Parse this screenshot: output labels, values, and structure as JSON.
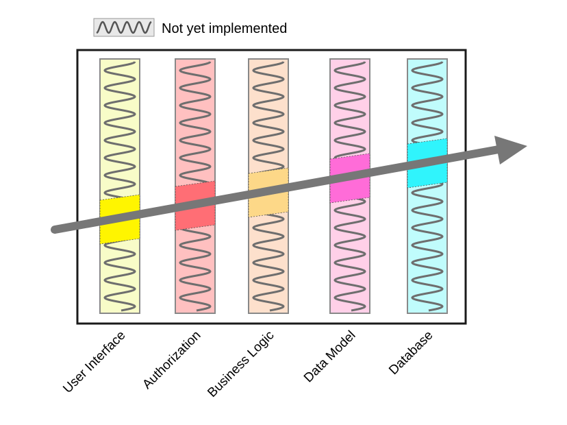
{
  "legend": {
    "label": "Not yet implemented",
    "icon": "squiggle-icon"
  },
  "layers": [
    {
      "label": "User Interface",
      "bg": "#f8fcc8",
      "slice": "#fff500"
    },
    {
      "label": "Authorization",
      "bg": "#ffc0c0",
      "slice": "#ff6e75"
    },
    {
      "label": "Business Logic",
      "bg": "#fde0cc",
      "slice": "#fdd888"
    },
    {
      "label": "Data Model",
      "bg": "#ffd0e8",
      "slice": "#ff6cd8"
    },
    {
      "label": "Database",
      "bg": "#c0fcfc",
      "slice": "#30f4fc"
    }
  ],
  "colors": {
    "arrow": "#777777",
    "squiggle": "#6e6e6e",
    "frame": "#1a1a1a"
  }
}
